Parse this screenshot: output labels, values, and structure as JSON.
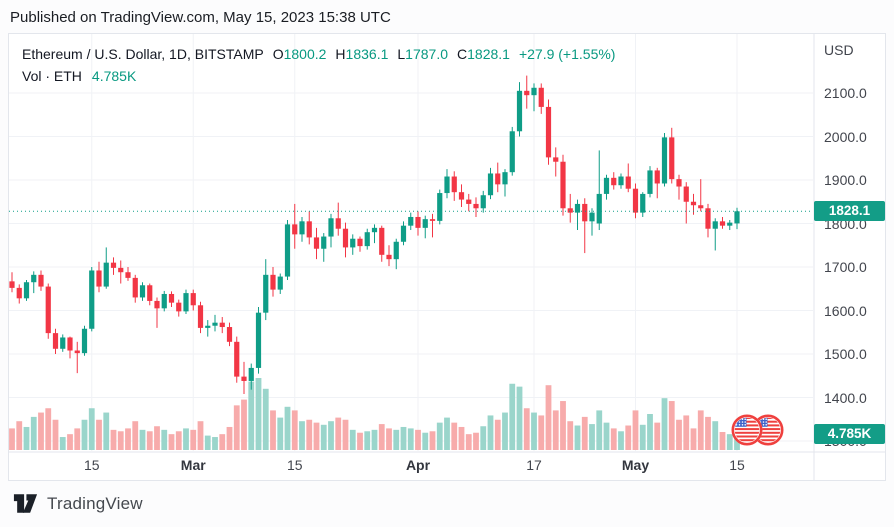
{
  "page": {
    "published_line": "Published on TradingView.com, May 15, 2023 15:38 UTC",
    "brand": "TradingView"
  },
  "legend": {
    "symbol_title": "Ethereum / U.S. Dollar, 1D, BITSTAMP",
    "open_label": "O",
    "open": "1800.2",
    "high_label": "H",
    "high": "1836.1",
    "low_label": "L",
    "low": "1787.0",
    "close_label": "C",
    "close": "1828.1",
    "change": "+27.9 (+1.55%)",
    "volume_label": "Vol · ETH",
    "volume_value": "4.785K"
  },
  "price_axis": {
    "currency": "USD",
    "ticks": [
      2100,
      2000,
      1900,
      1800,
      1700,
      1600,
      1500,
      1400,
      1300
    ]
  },
  "time_axis": {
    "ticks": [
      {
        "label": "15",
        "index": 11
      },
      {
        "label": "Mar",
        "index": 25
      },
      {
        "label": "15",
        "index": 39
      },
      {
        "label": "Apr",
        "index": 56
      },
      {
        "label": "17",
        "index": 72
      },
      {
        "label": "May",
        "index": 86
      },
      {
        "label": "15",
        "index": 100
      }
    ]
  },
  "badges": {
    "last_price": "1828.1",
    "last_volume": "4.785K"
  },
  "event_markers": {
    "icon": "us-flag",
    "count": 2
  },
  "colors": {
    "up": "#0f9d87",
    "down": "#f23645",
    "vol_up": "#9ad5cb",
    "vol_down": "#f7abab",
    "badge": "#139d87",
    "text_green": "#089981",
    "grid": "#f0f2f6",
    "axis": "#e3e6ec"
  },
  "chart_data": {
    "type": "candlestick",
    "title": "Ethereum / U.S. Dollar",
    "interval": "1D",
    "exchange": "BITSTAMP",
    "currency": "USD",
    "legend_ohlc": {
      "open": 1800.2,
      "high": 1836.1,
      "low": 1787.0,
      "close": 1828.1,
      "change": 27.9,
      "change_pct": 1.55
    },
    "last_price": 1828.1,
    "last_volume_label": "4.785K",
    "visible_price_range": [
      1300,
      2200
    ],
    "x_tick_labels": [
      "15",
      "Mar",
      "15",
      "Apr",
      "17",
      "May",
      "15"
    ],
    "columns": [
      "open",
      "high",
      "low",
      "close",
      "relative_volume"
    ],
    "candles": [
      [
        1667,
        1688,
        1642,
        1652,
        0.3
      ],
      [
        1652,
        1660,
        1616,
        1628,
        0.4
      ],
      [
        1628,
        1670,
        1622,
        1665,
        0.32
      ],
      [
        1665,
        1690,
        1640,
        1682,
        0.46
      ],
      [
        1682,
        1692,
        1645,
        1655,
        0.52
      ],
      [
        1655,
        1662,
        1535,
        1548,
        0.58
      ],
      [
        1548,
        1558,
        1500,
        1512,
        0.42
      ],
      [
        1512,
        1545,
        1505,
        1538,
        0.18
      ],
      [
        1538,
        1540,
        1490,
        1508,
        0.22
      ],
      [
        1508,
        1528,
        1456,
        1502,
        0.3
      ],
      [
        1502,
        1565,
        1496,
        1558,
        0.42
      ],
      [
        1558,
        1700,
        1552,
        1692,
        0.58
      ],
      [
        1692,
        1712,
        1642,
        1655,
        0.42
      ],
      [
        1655,
        1745,
        1650,
        1710,
        0.52
      ],
      [
        1710,
        1722,
        1682,
        1698,
        0.28
      ],
      [
        1698,
        1715,
        1662,
        1688,
        0.26
      ],
      [
        1688,
        1700,
        1668,
        1675,
        0.3
      ],
      [
        1675,
        1682,
        1618,
        1630,
        0.4
      ],
      [
        1630,
        1665,
        1622,
        1658,
        0.28
      ],
      [
        1658,
        1662,
        1612,
        1622,
        0.26
      ],
      [
        1622,
        1630,
        1560,
        1605,
        0.33
      ],
      [
        1605,
        1645,
        1598,
        1638,
        0.28
      ],
      [
        1638,
        1644,
        1608,
        1618,
        0.22
      ],
      [
        1618,
        1625,
        1586,
        1598,
        0.26
      ],
      [
        1598,
        1648,
        1592,
        1640,
        0.3
      ],
      [
        1640,
        1648,
        1600,
        1612,
        0.28
      ],
      [
        1612,
        1620,
        1548,
        1560,
        0.4
      ],
      [
        1560,
        1578,
        1540,
        1565,
        0.2
      ],
      [
        1565,
        1590,
        1552,
        1572,
        0.18
      ],
      [
        1572,
        1585,
        1548,
        1562,
        0.22
      ],
      [
        1562,
        1572,
        1518,
        1528,
        0.32
      ],
      [
        1528,
        1540,
        1434,
        1448,
        0.62
      ],
      [
        1448,
        1482,
        1408,
        1438,
        0.7
      ],
      [
        1438,
        1478,
        1418,
        1468,
        0.95
      ],
      [
        1468,
        1608,
        1455,
        1595,
        1.0
      ],
      [
        1595,
        1718,
        1578,
        1682,
        0.85
      ],
      [
        1682,
        1700,
        1632,
        1648,
        0.55
      ],
      [
        1648,
        1685,
        1638,
        1678,
        0.45
      ],
      [
        1678,
        1808,
        1670,
        1798,
        0.6
      ],
      [
        1798,
        1845,
        1742,
        1775,
        0.55
      ],
      [
        1775,
        1815,
        1758,
        1805,
        0.4
      ],
      [
        1805,
        1828,
        1752,
        1768,
        0.42
      ],
      [
        1768,
        1790,
        1718,
        1742,
        0.38
      ],
      [
        1742,
        1778,
        1712,
        1770,
        0.35
      ],
      [
        1770,
        1822,
        1745,
        1812,
        0.4
      ],
      [
        1812,
        1848,
        1772,
        1788,
        0.45
      ],
      [
        1788,
        1802,
        1722,
        1745,
        0.42
      ],
      [
        1745,
        1775,
        1728,
        1765,
        0.28
      ],
      [
        1765,
        1770,
        1735,
        1748,
        0.24
      ],
      [
        1748,
        1788,
        1740,
        1780,
        0.26
      ],
      [
        1780,
        1798,
        1755,
        1790,
        0.28
      ],
      [
        1790,
        1795,
        1712,
        1728,
        0.36
      ],
      [
        1728,
        1750,
        1702,
        1718,
        0.3
      ],
      [
        1718,
        1765,
        1695,
        1758,
        0.28
      ],
      [
        1758,
        1805,
        1750,
        1795,
        0.32
      ],
      [
        1795,
        1825,
        1785,
        1815,
        0.3
      ],
      [
        1815,
        1828,
        1772,
        1790,
        0.28
      ],
      [
        1790,
        1818,
        1766,
        1810,
        0.24
      ],
      [
        1810,
        1822,
        1768,
        1806,
        0.26
      ],
      [
        1806,
        1878,
        1798,
        1870,
        0.38
      ],
      [
        1870,
        1925,
        1858,
        1908,
        0.45
      ],
      [
        1908,
        1920,
        1852,
        1872,
        0.38
      ],
      [
        1872,
        1890,
        1838,
        1855,
        0.32
      ],
      [
        1855,
        1868,
        1828,
        1845,
        0.22
      ],
      [
        1845,
        1860,
        1815,
        1835,
        0.24
      ],
      [
        1835,
        1875,
        1825,
        1865,
        0.33
      ],
      [
        1865,
        1928,
        1856,
        1915,
        0.48
      ],
      [
        1915,
        1940,
        1872,
        1890,
        0.42
      ],
      [
        1890,
        1925,
        1862,
        1918,
        0.52
      ],
      [
        1918,
        2022,
        1910,
        2012,
        0.92
      ],
      [
        2012,
        2125,
        2000,
        2105,
        0.88
      ],
      [
        2105,
        2140,
        2064,
        2095,
        0.58
      ],
      [
        2095,
        2122,
        2058,
        2112,
        0.52
      ],
      [
        2112,
        2122,
        2052,
        2068,
        0.48
      ],
      [
        2068,
        2085,
        1935,
        1952,
        0.9
      ],
      [
        1952,
        1975,
        1908,
        1942,
        0.55
      ],
      [
        1942,
        1958,
        1818,
        1835,
        0.68
      ],
      [
        1835,
        1868,
        1802,
        1825,
        0.4
      ],
      [
        1825,
        1855,
        1785,
        1845,
        0.34
      ],
      [
        1845,
        1858,
        1732,
        1805,
        0.46
      ],
      [
        1805,
        1835,
        1772,
        1825,
        0.36
      ],
      [
        1800,
        1968,
        1785,
        1868,
        0.55
      ],
      [
        1868,
        1912,
        1855,
        1905,
        0.38
      ],
      [
        1905,
        1918,
        1878,
        1888,
        0.3
      ],
      [
        1888,
        1915,
        1880,
        1908,
        0.26
      ],
      [
        1908,
        1938,
        1872,
        1880,
        0.34
      ],
      [
        1880,
        1892,
        1812,
        1825,
        0.55
      ],
      [
        1825,
        1872,
        1815,
        1868,
        0.35
      ],
      [
        1868,
        1932,
        1860,
        1922,
        0.5
      ],
      [
        1922,
        1928,
        1858,
        1892,
        0.38
      ],
      [
        1892,
        2008,
        1885,
        1998,
        0.72
      ],
      [
        1998,
        2020,
        1892,
        1902,
        0.68
      ],
      [
        1902,
        1912,
        1855,
        1885,
        0.42
      ],
      [
        1885,
        1895,
        1800,
        1850,
        0.48
      ],
      [
        1850,
        1868,
        1820,
        1842,
        0.3
      ],
      [
        1842,
        1902,
        1828,
        1835,
        0.55
      ],
      [
        1835,
        1845,
        1768,
        1788,
        0.46
      ],
      [
        1788,
        1812,
        1738,
        1805,
        0.4
      ],
      [
        1805,
        1815,
        1788,
        1795,
        0.25
      ],
      [
        1795,
        1808,
        1785,
        1802,
        0.22
      ],
      [
        1800.2,
        1836.1,
        1787.0,
        1828.1,
        0.3
      ]
    ]
  }
}
